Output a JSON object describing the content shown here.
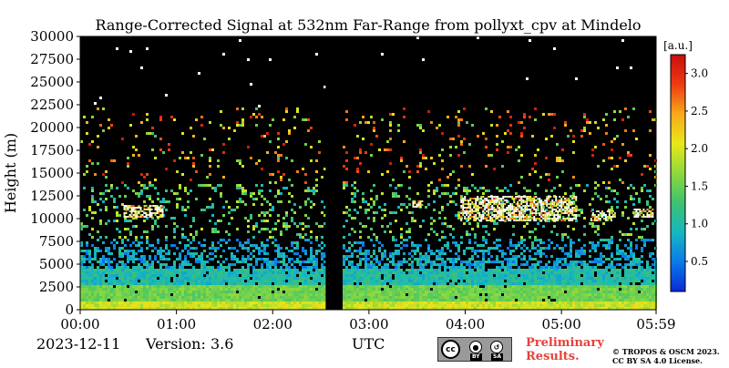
{
  "chart_data": {
    "type": "heatmap",
    "title": "Range-Corrected Signal at 532nm Far-Range from pollyxt_cpv at Mindelo",
    "xlabel": "",
    "ylabel": "Height (m)",
    "x_tick_labels": [
      "00:00",
      "01:00",
      "02:00",
      "03:00",
      "04:00",
      "05:00",
      "05:59"
    ],
    "x_ticks_hours": [
      0,
      1,
      2,
      3,
      4,
      5,
      5.983
    ],
    "xlim_hours": [
      0,
      5.983
    ],
    "y_ticks": [
      0,
      2500,
      5000,
      7500,
      10000,
      12500,
      15000,
      17500,
      20000,
      22500,
      25000,
      27500,
      30000
    ],
    "ylim": [
      0,
      30000
    ],
    "colorbar": {
      "unit_label": "[a.u.]",
      "ticks": [
        0.5,
        1.0,
        1.5,
        2.0,
        2.5,
        3.0
      ],
      "tick_labels": [
        "0.5",
        "1.0",
        "1.5",
        "2.0",
        "2.5",
        "3.0"
      ],
      "range": [
        0.1,
        3.25
      ],
      "colormap": "jet-like",
      "colors": [
        "#0a2ad8",
        "#0a7ae8",
        "#16b8c0",
        "#3ec270",
        "#8ed93a",
        "#e8e81a",
        "#f8a81a",
        "#ee3a12",
        "#c80e0e"
      ]
    },
    "background_color": "#000000",
    "no_signal_gaps_hours": [
      [
        2.55,
        2.72
      ]
    ],
    "cloud_layers": [
      {
        "start_hour": 0.45,
        "end_hour": 0.85,
        "base_m": 10200,
        "top_m": 11500
      },
      {
        "start_hour": 3.45,
        "end_hour": 3.55,
        "base_m": 11200,
        "top_m": 12000
      },
      {
        "start_hour": 3.95,
        "end_hour": 5.15,
        "base_m": 9700,
        "top_m": 12500
      },
      {
        "start_hour": 5.3,
        "end_hour": 5.55,
        "base_m": 9800,
        "top_m": 10900
      },
      {
        "start_hour": 5.75,
        "end_hour": 5.95,
        "base_m": 10200,
        "top_m": 11100
      }
    ],
    "grid": false
  },
  "footer": {
    "date": "2023-12-11",
    "version": "Version: 3.6",
    "timezone": "UTC",
    "license_badge": {
      "cc": "cc",
      "by": "BY",
      "sa": "SA"
    },
    "preliminary": "Preliminary Results.",
    "copyright_line1": "© TROPOS & OSCM 2023.",
    "copyright_line2": "CC BY SA 4.0 License."
  }
}
